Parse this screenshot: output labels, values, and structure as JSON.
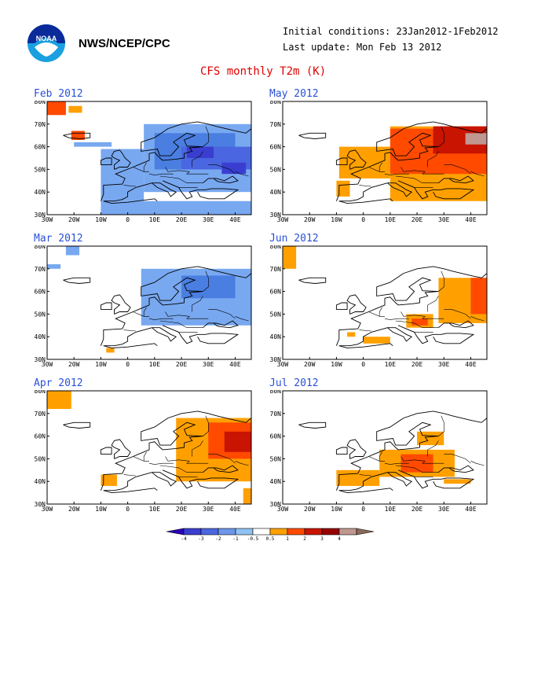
{
  "header": {
    "org": "NWS/NCEP/CPC",
    "logo_text": "NOAA",
    "initial_conditions": "Initial conditions: 23Jan2012-1Feb2012",
    "last_update": "Last update: Mon Feb 13 2012",
    "title": "CFS monthly T2m (K)"
  },
  "axes": {
    "lat_labels": [
      "80N",
      "70N",
      "60N",
      "50N",
      "40N",
      "30N"
    ],
    "lon_labels": [
      "30W",
      "20W",
      "10W",
      "0",
      "10E",
      "20E",
      "30E",
      "40E"
    ]
  },
  "panels": [
    {
      "id": "feb",
      "title": "Feb 2012",
      "anomalies": [
        {
          "lon0": -30,
          "lat0": 74,
          "lon1": -23,
          "lat1": 80,
          "cls": 2
        },
        {
          "lon0": -22,
          "lat0": 75,
          "lon1": -17,
          "lat1": 78,
          "cls": 1
        },
        {
          "lon0": -21,
          "lat0": 63,
          "lon1": -16,
          "lat1": 67,
          "cls": 2
        },
        {
          "lon0": 6,
          "lat0": 40,
          "lon1": 46,
          "lat1": 70,
          "cls": -1
        },
        {
          "lon0": -10,
          "lat0": 36,
          "lon1": 6,
          "lat1": 59,
          "cls": -1
        },
        {
          "lon0": -20,
          "lat0": 60,
          "lon1": -6,
          "lat1": 62,
          "cls": -1
        },
        {
          "lon0": 10,
          "lat0": 50,
          "lon1": 40,
          "lat1": 66,
          "cls": -2
        },
        {
          "lon0": 20,
          "lat0": 50,
          "lon1": 46,
          "lat1": 60,
          "cls": -3
        },
        {
          "lon0": 22,
          "lat0": 55,
          "lon1": 32,
          "lat1": 60,
          "cls": -4
        },
        {
          "lon0": 35,
          "lat0": 48,
          "lon1": 44,
          "lat1": 53,
          "cls": -4
        },
        {
          "lon0": -10,
          "lat0": 30,
          "lon1": 46,
          "lat1": 36,
          "cls": -1
        }
      ]
    },
    {
      "id": "may",
      "title": "May 2012",
      "anomalies": [
        {
          "lon0": 10,
          "lat0": 36,
          "lon1": 46,
          "lat1": 69,
          "cls": 1
        },
        {
          "lon0": -9,
          "lat0": 46,
          "lon1": 10,
          "lat1": 60,
          "cls": 1
        },
        {
          "lon0": -10,
          "lat0": 38,
          "lon1": -5,
          "lat1": 45,
          "cls": 1
        },
        {
          "lon0": 10,
          "lat0": 48,
          "lon1": 46,
          "lat1": 68,
          "cls": 2
        },
        {
          "lon0": 26,
          "lat0": 57,
          "lon1": 46,
          "lat1": 69,
          "cls": 3
        },
        {
          "lon0": 38,
          "lat0": 61,
          "lon1": 46,
          "lat1": 66,
          "cls": 4
        }
      ]
    },
    {
      "id": "mar",
      "title": "Mar 2012",
      "anomalies": [
        {
          "lon0": -30,
          "lat0": 70,
          "lon1": -25,
          "lat1": 72,
          "cls": -1
        },
        {
          "lon0": -23,
          "lat0": 76,
          "lon1": -18,
          "lat1": 80,
          "cls": -1
        },
        {
          "lon0": 5,
          "lat0": 45,
          "lon1": 46,
          "lat1": 70,
          "cls": -1
        },
        {
          "lon0": 20,
          "lat0": 57,
          "lon1": 40,
          "lat1": 67,
          "cls": -2
        },
        {
          "lon0": -8,
          "lat0": 33,
          "lon1": -5,
          "lat1": 35,
          "cls": 1
        }
      ]
    },
    {
      "id": "jun",
      "title": "Jun 2012",
      "anomalies": [
        {
          "lon0": -30,
          "lat0": 70,
          "lon1": -25,
          "lat1": 80,
          "cls": 1
        },
        {
          "lon0": 28,
          "lat0": 46,
          "lon1": 46,
          "lat1": 66,
          "cls": 1
        },
        {
          "lon0": 40,
          "lat0": 50,
          "lon1": 46,
          "lat1": 66,
          "cls": 2
        },
        {
          "lon0": 16,
          "lat0": 44,
          "lon1": 26,
          "lat1": 50,
          "cls": 1
        },
        {
          "lon0": 18,
          "lat0": 45,
          "lon1": 24,
          "lat1": 48,
          "cls": 2
        },
        {
          "lon0": 0,
          "lat0": 37,
          "lon1": 10,
          "lat1": 40,
          "cls": 1
        },
        {
          "lon0": -6,
          "lat0": 40,
          "lon1": -3,
          "lat1": 42,
          "cls": 1
        }
      ]
    },
    {
      "id": "apr",
      "title": "Apr 2012",
      "anomalies": [
        {
          "lon0": -30,
          "lat0": 72,
          "lon1": -21,
          "lat1": 80,
          "cls": 1
        },
        {
          "lon0": 18,
          "lat0": 40,
          "lon1": 46,
          "lat1": 68,
          "cls": 1
        },
        {
          "lon0": 30,
          "lat0": 50,
          "lon1": 46,
          "lat1": 66,
          "cls": 2
        },
        {
          "lon0": 36,
          "lat0": 53,
          "lon1": 46,
          "lat1": 62,
          "cls": 3
        },
        {
          "lon0": -10,
          "lat0": 38,
          "lon1": -4,
          "lat1": 43,
          "cls": 1
        },
        {
          "lon0": 43,
          "lat0": 30,
          "lon1": 46,
          "lat1": 37,
          "cls": 1
        }
      ]
    },
    {
      "id": "jul",
      "title": "Jul 2012",
      "anomalies": [
        {
          "lon0": 6,
          "lat0": 42,
          "lon1": 34,
          "lat1": 54,
          "cls": 1
        },
        {
          "lon0": 14,
          "lat0": 44,
          "lon1": 26,
          "lat1": 52,
          "cls": 2
        },
        {
          "lon0": -10,
          "lat0": 38,
          "lon1": 6,
          "lat1": 45,
          "cls": 1
        },
        {
          "lon0": 30,
          "lat0": 39,
          "lon1": 40,
          "lat1": 41,
          "cls": 1
        },
        {
          "lon0": 20,
          "lat0": 56,
          "lon1": 30,
          "lat1": 62,
          "cls": 1
        }
      ]
    }
  ],
  "legend": {
    "labels": [
      "-4",
      "-3",
      "-2",
      "-1",
      "-0.5",
      "0.5",
      "1",
      "2",
      "3",
      "4"
    ],
    "colors": [
      "#2c00ba",
      "#3a3ed0",
      "#4a66e0",
      "#6c96e8",
      "#8ec2f2",
      "#ffffff",
      "#ffa000",
      "#ff4a00",
      "#c81400",
      "#960000",
      "#c09890",
      "#8a6a5a"
    ]
  },
  "colors": {
    "-4": "#3a3ed0",
    "-3": "#4a66e0",
    "-2": "#4a7ee0",
    "-1": "#78a8f0",
    "1": "#ffa000",
    "2": "#ff4a00",
    "3": "#c81400",
    "4": "#c09890"
  }
}
